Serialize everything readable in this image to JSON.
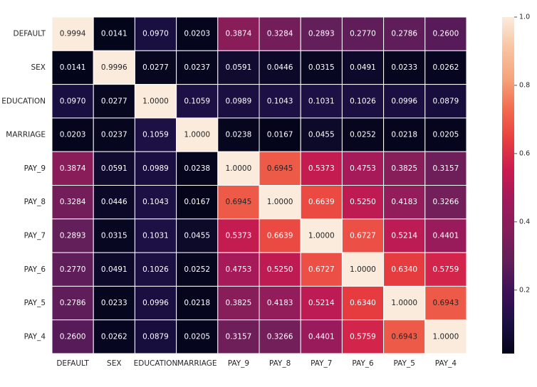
{
  "chart_data": {
    "type": "heatmap",
    "title": "",
    "xlabel": "",
    "ylabel": "",
    "x_categories": [
      "DEFAULT",
      "SEX",
      "EDUCATION",
      "MARRIAGE",
      "PAY_9",
      "PAY_8",
      "PAY_7",
      "PAY_6",
      "PAY_5",
      "PAY_4"
    ],
    "y_categories": [
      "DEFAULT",
      "SEX",
      "EDUCATION",
      "MARRIAGE",
      "PAY_9",
      "PAY_8",
      "PAY_7",
      "PAY_6",
      "PAY_5",
      "PAY_4"
    ],
    "values": [
      [
        0.9994,
        0.0141,
        0.097,
        0.0203,
        0.3874,
        0.3284,
        0.2893,
        0.277,
        0.2786,
        0.26
      ],
      [
        0.0141,
        0.9996,
        0.0277,
        0.0237,
        0.0591,
        0.0446,
        0.0315,
        0.0491,
        0.0233,
        0.0262
      ],
      [
        0.097,
        0.0277,
        1.0,
        0.1059,
        0.0989,
        0.1043,
        0.1031,
        0.1026,
        0.0996,
        0.0879
      ],
      [
        0.0203,
        0.0237,
        0.1059,
        1.0,
        0.0238,
        0.0167,
        0.0455,
        0.0252,
        0.0218,
        0.0205
      ],
      [
        0.3874,
        0.0591,
        0.0989,
        0.0238,
        1.0,
        0.6945,
        0.5373,
        0.4753,
        0.3825,
        0.3157
      ],
      [
        0.3284,
        0.0446,
        0.1043,
        0.0167,
        0.6945,
        1.0,
        0.6639,
        0.525,
        0.4183,
        0.3266
      ],
      [
        0.2893,
        0.0315,
        0.1031,
        0.0455,
        0.5373,
        0.6639,
        1.0,
        0.6727,
        0.5214,
        0.4401
      ],
      [
        0.277,
        0.0491,
        0.1026,
        0.0252,
        0.4753,
        0.525,
        0.6727,
        1.0,
        0.634,
        0.5759
      ],
      [
        0.2786,
        0.0233,
        0.0996,
        0.0218,
        0.3825,
        0.4183,
        0.5214,
        0.634,
        1.0,
        0.6943
      ],
      [
        0.26,
        0.0262,
        0.0879,
        0.0205,
        0.3157,
        0.3266,
        0.4401,
        0.5759,
        0.6943,
        1.0
      ]
    ],
    "value_format": "0.0000",
    "colormap": "rocket",
    "colormap_stops": [
      "#03051a",
      "#1c1044",
      "#3e1158",
      "#611f5a",
      "#841e5a",
      "#a11a5b",
      "#cb1b4f",
      "#e83f3f",
      "#f26c4f",
      "#f6a47c",
      "#f8c4a2",
      "#faebdd"
    ],
    "color_range": [
      0.0141,
      1.0
    ],
    "colorbar_ticks": [
      0.2,
      0.4,
      0.6,
      0.8,
      1.0
    ],
    "colorbar_tick_labels": [
      "0.2",
      "0.4",
      "0.6",
      "0.8",
      "1.0"
    ],
    "cell_border_color": "#ffffff",
    "light_text_color": "#ffffff",
    "dark_text_color": "#262626"
  }
}
